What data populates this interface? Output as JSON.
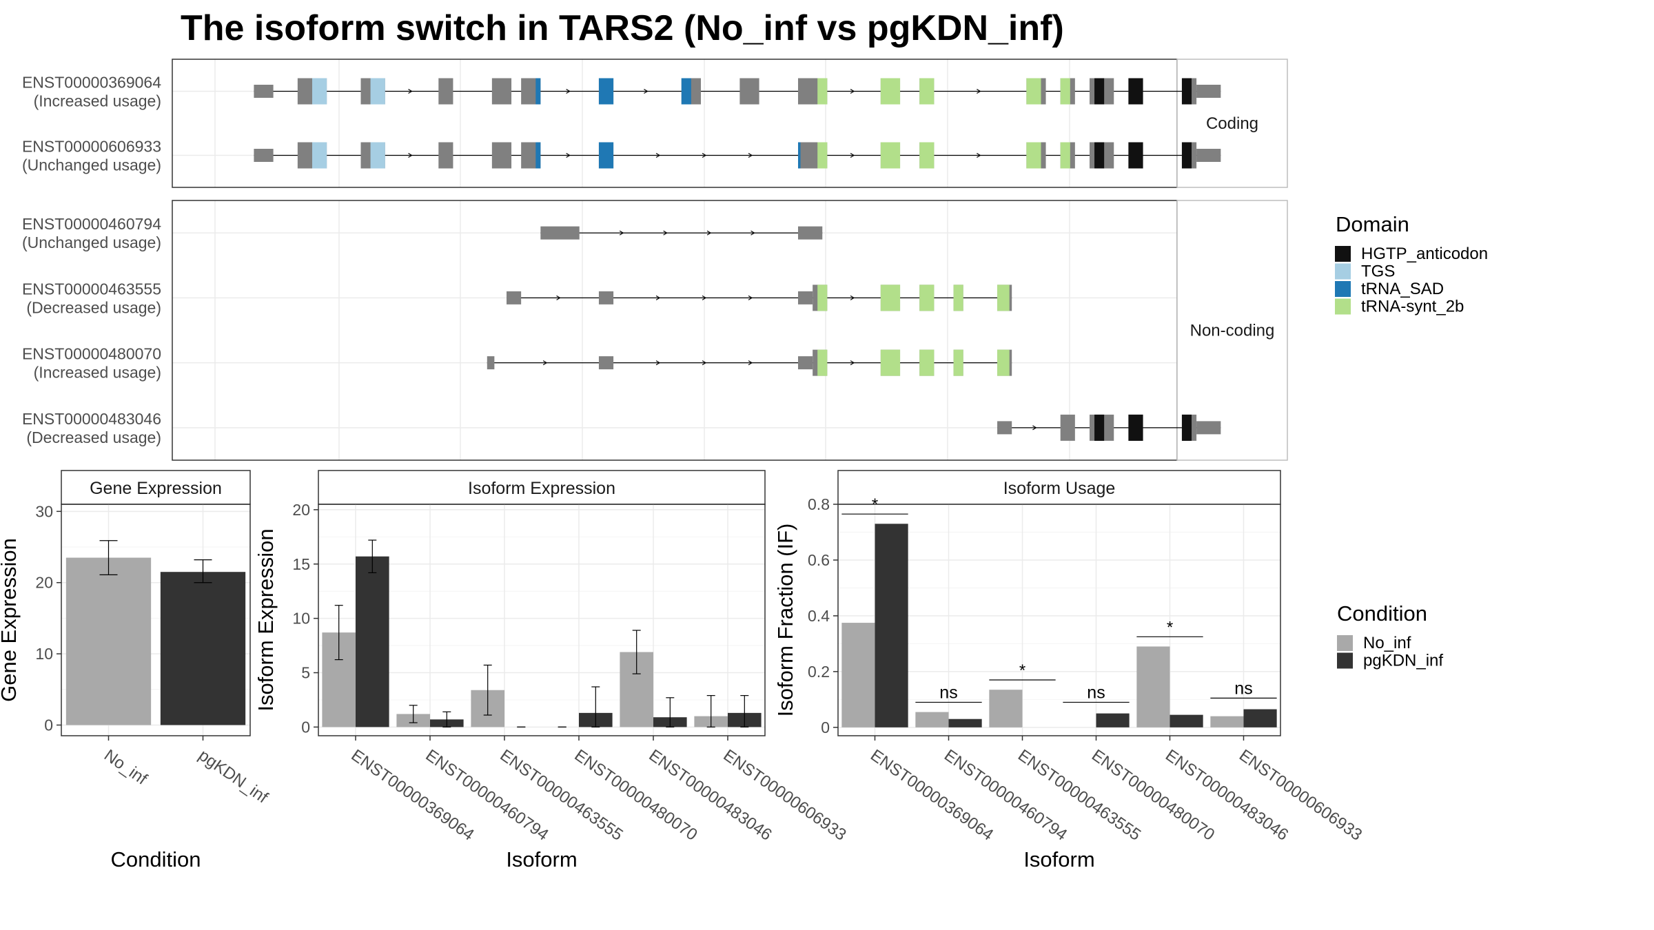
{
  "title": "The isoform switch in TARS2 (No_inf vs pgKDN_inf)",
  "colors": {
    "exon": "#808080",
    "No_inf": "#a9a9a9",
    "pgKDN_inf": "#333333",
    "grid": "#ebebeb",
    "strip_bg": "#ffffff",
    "panel_border": "#333333"
  },
  "domain_legend": {
    "title": "Domain",
    "items": [
      {
        "name": "HGTP_anticodon",
        "color": "#111111"
      },
      {
        "name": "TGS",
        "color": "#a6cee3"
      },
      {
        "name": "tRNA_SAD",
        "color": "#1f78b4"
      },
      {
        "name": "tRNA-synt_2b",
        "color": "#b2df8a"
      }
    ]
  },
  "condition_legend": {
    "title": "Condition",
    "items": [
      {
        "name": "No_inf",
        "color": "#a9a9a9"
      },
      {
        "name": "pgKDN_inf",
        "color": "#333333"
      }
    ]
  },
  "structure": {
    "facets": [
      {
        "label": "Coding",
        "isoforms": [
          {
            "id": "ENST00000369064",
            "usage": "(Increased usage)",
            "span": [
              0.8,
              20.7
            ],
            "exons": [
              [
                0.8,
                1.2,
                "utr"
              ],
              [
                1.7,
                2.3,
                "cds"
              ],
              [
                3.0,
                3.5,
                "cds"
              ],
              [
                4.6,
                4.9,
                "cds"
              ],
              [
                5.7,
                6.1,
                "cds"
              ],
              [
                6.3,
                6.7,
                "cds"
              ],
              [
                7.9,
                8.2,
                "cds"
              ],
              [
                9.6,
                10.0,
                "cds"
              ],
              [
                10.8,
                11.2,
                "cds"
              ],
              [
                12.0,
                12.6,
                "cds"
              ],
              [
                13.7,
                14.1,
                "cds"
              ],
              [
                14.5,
                14.8,
                "cds"
              ],
              [
                16.7,
                17.1,
                "cds"
              ],
              [
                17.4,
                17.7,
                "cds"
              ],
              [
                18.0,
                18.5,
                "cds"
              ],
              [
                18.8,
                19.1,
                "cds"
              ],
              [
                19.9,
                20.2,
                "cds"
              ],
              [
                20.2,
                20.7,
                "utr"
              ]
            ],
            "domains": [
              [
                2.0,
                2.3,
                "TGS"
              ],
              [
                3.2,
                3.5,
                "TGS"
              ],
              [
                6.6,
                6.7,
                "tRNA_SAD"
              ],
              [
                7.9,
                8.2,
                "tRNA_SAD"
              ],
              [
                9.6,
                9.8,
                "tRNA_SAD"
              ],
              [
                12.4,
                12.6,
                "tRNA-synt_2b"
              ],
              [
                13.7,
                14.1,
                "tRNA-synt_2b"
              ],
              [
                14.5,
                14.8,
                "tRNA-synt_2b"
              ],
              [
                16.7,
                17.0,
                "tRNA-synt_2b"
              ],
              [
                17.4,
                17.6,
                "tRNA-synt_2b"
              ],
              [
                18.1,
                18.3,
                "HGTP_anticodon"
              ],
              [
                18.8,
                19.1,
                "HGTP_anticodon"
              ],
              [
                19.9,
                20.1,
                "HGTP_anticodon"
              ]
            ]
          },
          {
            "id": "ENST00000606933",
            "usage": "(Unchanged usage)",
            "span": [
              0.8,
              20.7
            ],
            "exons": [
              [
                0.8,
                1.2,
                "utr"
              ],
              [
                1.7,
                2.3,
                "cds"
              ],
              [
                3.0,
                3.5,
                "cds"
              ],
              [
                4.6,
                4.9,
                "cds"
              ],
              [
                5.7,
                6.1,
                "cds"
              ],
              [
                6.3,
                6.7,
                "cds"
              ],
              [
                7.9,
                8.2,
                "cds"
              ],
              [
                12.0,
                12.6,
                "cds"
              ],
              [
                13.7,
                14.1,
                "cds"
              ],
              [
                14.5,
                14.8,
                "cds"
              ],
              [
                16.7,
                17.1,
                "cds"
              ],
              [
                17.4,
                17.7,
                "cds"
              ],
              [
                18.0,
                18.5,
                "cds"
              ],
              [
                18.8,
                19.1,
                "cds"
              ],
              [
                19.9,
                20.2,
                "cds"
              ],
              [
                20.2,
                20.7,
                "utr"
              ]
            ],
            "domains": [
              [
                2.0,
                2.3,
                "TGS"
              ],
              [
                3.2,
                3.5,
                "TGS"
              ],
              [
                6.6,
                6.7,
                "tRNA_SAD"
              ],
              [
                7.9,
                8.2,
                "tRNA_SAD"
              ],
              [
                12.0,
                12.05,
                "tRNA_SAD"
              ],
              [
                12.4,
                12.6,
                "tRNA-synt_2b"
              ],
              [
                13.7,
                14.1,
                "tRNA-synt_2b"
              ],
              [
                14.5,
                14.8,
                "tRNA-synt_2b"
              ],
              [
                16.7,
                17.0,
                "tRNA-synt_2b"
              ],
              [
                17.4,
                17.6,
                "tRNA-synt_2b"
              ],
              [
                18.1,
                18.3,
                "HGTP_anticodon"
              ],
              [
                18.8,
                19.1,
                "HGTP_anticodon"
              ],
              [
                19.9,
                20.1,
                "HGTP_anticodon"
              ]
            ]
          }
        ]
      },
      {
        "label": "Non-coding",
        "isoforms": [
          {
            "id": "ENST00000460794",
            "usage": "(Unchanged usage)",
            "span": [
              6.7,
              12.5
            ],
            "exons": [
              [
                6.7,
                7.5,
                "utr"
              ],
              [
                12.0,
                12.5,
                "utr"
              ]
            ],
            "domains": []
          },
          {
            "id": "ENST00000463555",
            "usage": "(Decreased usage)",
            "span": [
              6.0,
              16.4
            ],
            "exons": [
              [
                6.0,
                6.3,
                "utr"
              ],
              [
                7.9,
                8.2,
                "utr"
              ],
              [
                12.0,
                12.3,
                "utr"
              ],
              [
                12.3,
                12.6,
                "cds"
              ],
              [
                13.7,
                14.1,
                "cds"
              ],
              [
                14.5,
                14.8,
                "cds"
              ],
              [
                15.2,
                15.4,
                "cds"
              ],
              [
                16.1,
                16.4,
                "cds"
              ]
            ],
            "domains": [
              [
                12.4,
                12.6,
                "tRNA-synt_2b"
              ],
              [
                13.7,
                14.1,
                "tRNA-synt_2b"
              ],
              [
                14.5,
                14.8,
                "tRNA-synt_2b"
              ],
              [
                15.2,
                15.4,
                "tRNA-synt_2b"
              ],
              [
                16.1,
                16.35,
                "tRNA-synt_2b"
              ]
            ]
          },
          {
            "id": "ENST00000480070",
            "usage": "(Increased usage)",
            "span": [
              5.6,
              16.4
            ],
            "exons": [
              [
                5.6,
                5.75,
                "utr"
              ],
              [
                7.9,
                8.2,
                "utr"
              ],
              [
                12.0,
                12.3,
                "utr"
              ],
              [
                12.3,
                12.6,
                "cds"
              ],
              [
                13.7,
                14.1,
                "cds"
              ],
              [
                14.5,
                14.8,
                "cds"
              ],
              [
                15.2,
                15.4,
                "cds"
              ],
              [
                16.1,
                16.4,
                "cds"
              ]
            ],
            "domains": [
              [
                12.4,
                12.6,
                "tRNA-synt_2b"
              ],
              [
                13.7,
                14.1,
                "tRNA-synt_2b"
              ],
              [
                14.5,
                14.8,
                "tRNA-synt_2b"
              ],
              [
                15.2,
                15.4,
                "tRNA-synt_2b"
              ],
              [
                16.1,
                16.35,
                "tRNA-synt_2b"
              ]
            ]
          },
          {
            "id": "ENST00000483046",
            "usage": "(Decreased usage)",
            "span": [
              16.1,
              20.7
            ],
            "exons": [
              [
                16.1,
                16.4,
                "utr"
              ],
              [
                17.4,
                17.7,
                "cds"
              ],
              [
                18.0,
                18.5,
                "cds"
              ],
              [
                18.8,
                19.1,
                "cds"
              ],
              [
                19.9,
                20.2,
                "cds"
              ],
              [
                20.2,
                20.7,
                "utr"
              ]
            ],
            "domains": [
              [
                18.1,
                18.3,
                "HGTP_anticodon"
              ],
              [
                18.8,
                19.1,
                "HGTP_anticodon"
              ],
              [
                19.9,
                20.1,
                "HGTP_anticodon"
              ]
            ]
          }
        ]
      }
    ]
  },
  "chart_data": [
    {
      "type": "bar",
      "strip": "Gene Expression",
      "xlabel": "Condition",
      "ylabel": "Gene Expression",
      "ylim": [
        -1.5,
        31
      ],
      "yticks": [
        0,
        10,
        20,
        30
      ],
      "categories": [
        "No_inf",
        "pgKDN_inf"
      ],
      "values": [
        23.5,
        21.5
      ],
      "err_lo": [
        21.1,
        20.0
      ],
      "err_hi": [
        25.9,
        23.2
      ]
    },
    {
      "type": "bar",
      "strip": "Isoform Expression",
      "xlabel": "Isoform",
      "ylabel": "Isoform Expression",
      "ylim": [
        -0.8,
        20.5
      ],
      "yticks": [
        0,
        5,
        10,
        15,
        20
      ],
      "categories": [
        "ENST00000369064",
        "ENST00000460794",
        "ENST00000463555",
        "ENST00000480070",
        "ENST00000483046",
        "ENST00000606933"
      ],
      "series": [
        {
          "name": "No_inf",
          "values": [
            8.7,
            1.2,
            3.4,
            0.0,
            6.9,
            1.0
          ],
          "err_lo": [
            6.2,
            0.4,
            1.1,
            0.0,
            4.9,
            0.0
          ],
          "err_hi": [
            11.2,
            2.0,
            5.7,
            0.0,
            8.9,
            2.9
          ]
        },
        {
          "name": "pgKDN_inf",
          "values": [
            15.7,
            0.7,
            0.0,
            1.3,
            0.9,
            1.3
          ],
          "err_lo": [
            14.2,
            0.0,
            0.0,
            0.0,
            0.0,
            0.0
          ],
          "err_hi": [
            17.2,
            1.4,
            0.0,
            3.7,
            2.7,
            2.9
          ]
        }
      ]
    },
    {
      "type": "bar",
      "strip": "Isoform Usage",
      "xlabel": "Isoform",
      "ylabel": "Isoform Fraction (IF)",
      "ylim": [
        -0.03,
        0.8
      ],
      "yticks": [
        0.0,
        0.2,
        0.4,
        0.6,
        0.8
      ],
      "categories": [
        "ENST00000369064",
        "ENST00000460794",
        "ENST00000463555",
        "ENST00000480070",
        "ENST00000483046",
        "ENST00000606933"
      ],
      "series": [
        {
          "name": "No_inf",
          "values": [
            0.375,
            0.055,
            0.135,
            0.0,
            0.29,
            0.04
          ]
        },
        {
          "name": "pgKDN_inf",
          "values": [
            0.73,
            0.03,
            0.0,
            0.05,
            0.045,
            0.065
          ]
        }
      ],
      "significance": [
        {
          "label": "*",
          "y": 0.765
        },
        {
          "label": "ns",
          "y": 0.09
        },
        {
          "label": "*",
          "y": 0.17
        },
        {
          "label": "ns",
          "y": 0.09
        },
        {
          "label": "*",
          "y": 0.325
        },
        {
          "label": "ns",
          "y": 0.105
        }
      ]
    }
  ]
}
